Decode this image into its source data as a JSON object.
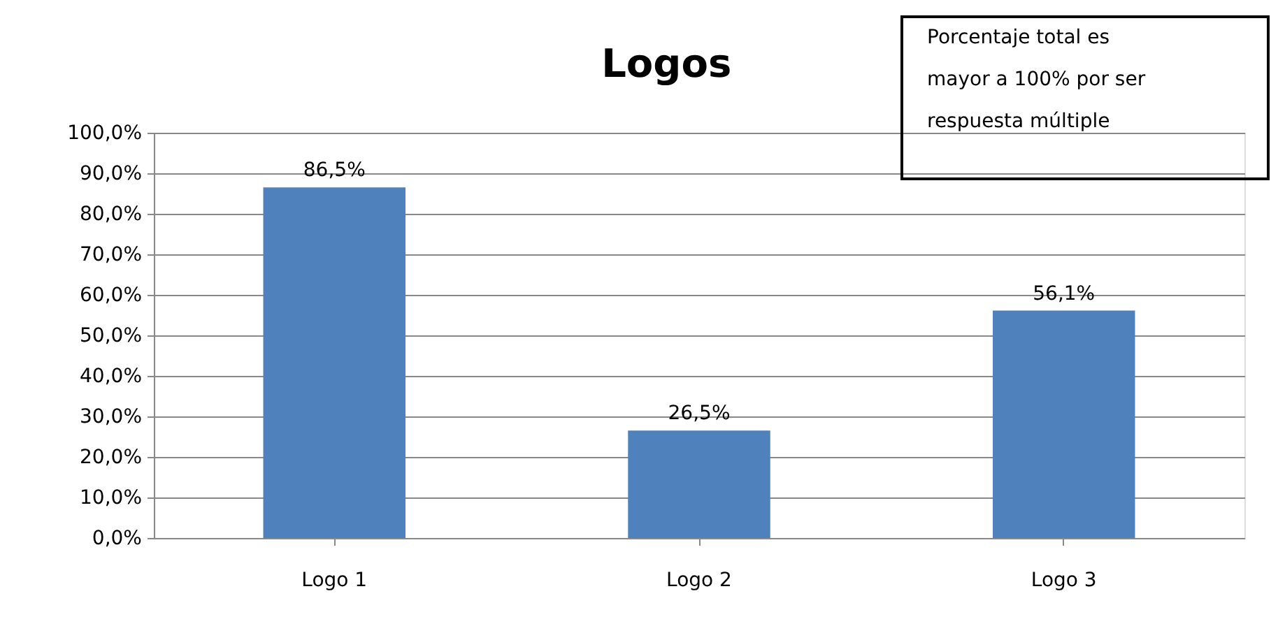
{
  "chart_data": {
    "type": "bar",
    "title": "Logos",
    "categories": [
      "Logo 1",
      "Logo 2",
      "Logo 3"
    ],
    "values": [
      86.5,
      26.5,
      56.1
    ],
    "value_labels": [
      "86,5%",
      "26,5%",
      "56,1%"
    ],
    "color": "#4f81bd",
    "ylim": [
      0,
      100
    ],
    "yticks": [
      {
        "value": 0,
        "label": "0,0%"
      },
      {
        "value": 10,
        "label": "10,0%"
      },
      {
        "value": 20,
        "label": "20,0%"
      },
      {
        "value": 30,
        "label": "30,0%"
      },
      {
        "value": 40,
        "label": "40,0%"
      },
      {
        "value": 50,
        "label": "50,0%"
      },
      {
        "value": 60,
        "label": "60,0%"
      },
      {
        "value": 70,
        "label": "70,0%"
      },
      {
        "value": 80,
        "label": "80,0%"
      },
      {
        "value": 90,
        "label": "90,0%"
      },
      {
        "value": 100,
        "label": "100,0%"
      }
    ],
    "grid": "y",
    "annotations": [
      "Porcentaje total es mayor a 100% por ser respuesta múltiple"
    ]
  }
}
